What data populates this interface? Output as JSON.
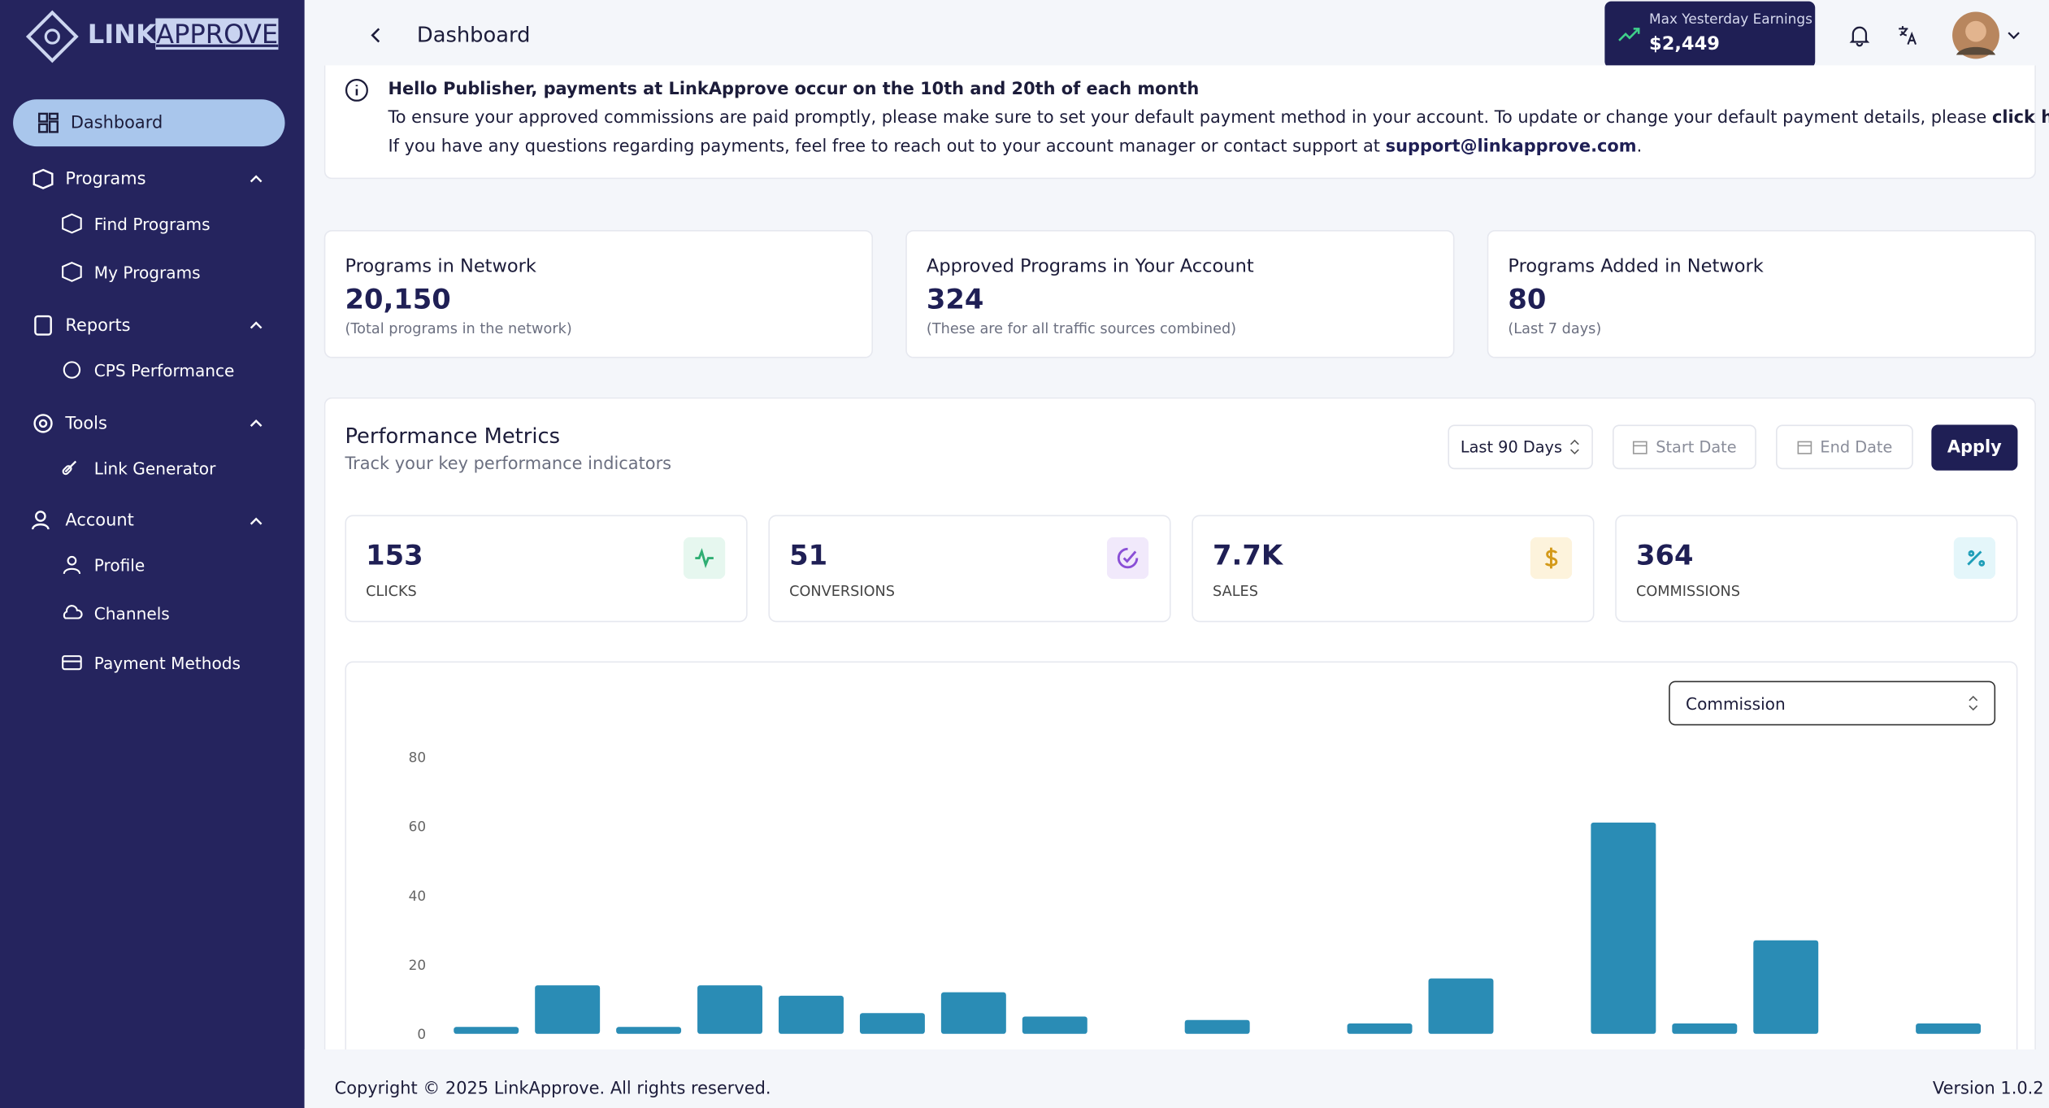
{
  "sidebar": {
    "logo": {
      "bold": "LINK",
      "rest": "APPROVE"
    },
    "nav": [
      {
        "label": "Dashboard"
      },
      {
        "label": "Programs"
      },
      {
        "label": "Find Programs"
      },
      {
        "label": "My Programs"
      },
      {
        "label": "Reports"
      },
      {
        "label": "CPS Performance"
      },
      {
        "label": "Tools"
      },
      {
        "label": "Link Generator"
      },
      {
        "label": "Account"
      },
      {
        "label": "Profile"
      },
      {
        "label": "Channels"
      },
      {
        "label": "Payment Methods"
      }
    ]
  },
  "header": {
    "title": "Dashboard",
    "earnings_label": "Max Yesterday Earnings",
    "earnings_value": "$2,449"
  },
  "notice": {
    "heading": "Hello Publisher, payments at LinkApprove occur on the 10th and 20th of each month",
    "line1": "To ensure your approved commissions are paid promptly, please make sure to set your default payment method in your account. To update or change your default payment details, please",
    "link": "click here",
    "line1_end": ".",
    "line2": "If you have any questions regarding payments, feel free to reach out to your account manager or contact support at",
    "email": "support@linkapprove.com",
    "line2_end": "."
  },
  "stats": [
    {
      "title": "Programs in Network",
      "value": "20,150",
      "note": "(Total programs in the network)"
    },
    {
      "title": "Approved Programs in Your Account",
      "value": "324",
      "note": "(These are for all traffic sources combined)"
    },
    {
      "title": "Programs Added in Network",
      "value": "80",
      "note": "(Last 7 days)"
    }
  ],
  "performance": {
    "title": "Performance Metrics",
    "subtitle": "Track your key performance indicators",
    "range": "Last 90 Days",
    "start": "Start Date",
    "end": "End Date",
    "apply": "Apply",
    "metric_select": "Commission"
  },
  "metrics": [
    {
      "value": "153",
      "label": "CLICKS"
    },
    {
      "value": "51",
      "label": "CONVERSIONS"
    },
    {
      "value": "7.7K",
      "label": "SALES"
    },
    {
      "value": "364",
      "label": "COMMISSIONS"
    }
  ],
  "chart_data": {
    "type": "bar",
    "categories": [
      null,
      null,
      null,
      null,
      null,
      null,
      null,
      null,
      null,
      null,
      null,
      null,
      null,
      null,
      null,
      null,
      null,
      null,
      null
    ],
    "values": [
      2,
      14,
      2,
      14,
      11,
      6,
      12,
      5,
      0,
      4,
      0,
      3,
      16,
      0,
      61,
      3,
      27,
      0,
      3
    ],
    "color": "#2a8cb5",
    "ylim": [
      0,
      80
    ],
    "yticks": [
      0,
      20,
      40,
      60,
      80
    ],
    "grid": false
  },
  "footer": {
    "copyright": "Copyright © 2025 LinkApprove. All rights reserved.",
    "version": "Version 1.0.2"
  }
}
